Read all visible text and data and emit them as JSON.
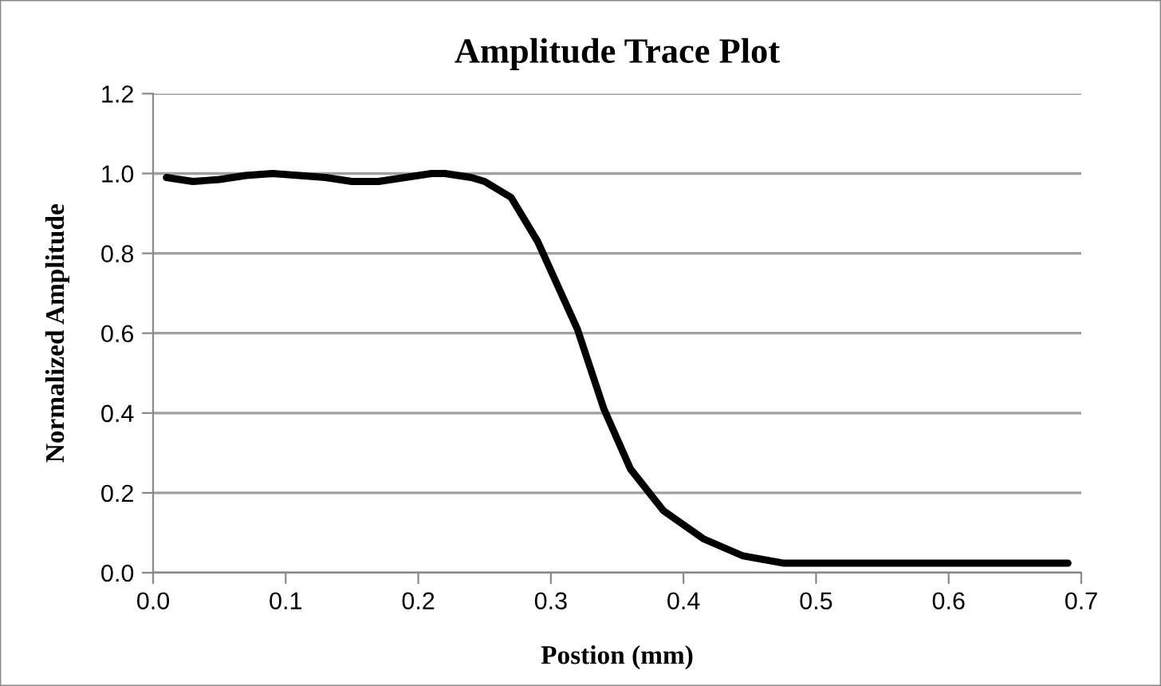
{
  "chart_data": {
    "type": "line",
    "title": "Amplitude Trace Plot",
    "xlabel": "Postion (mm)",
    "ylabel": "Normalized Amplitude",
    "series": [
      {
        "color": "#000000",
        "x": [
          0.01,
          0.03,
          0.05,
          0.07,
          0.09,
          0.11,
          0.13,
          0.15,
          0.17,
          0.19,
          0.21,
          0.22,
          0.24,
          0.25,
          0.27,
          0.29,
          0.32,
          0.34,
          0.36,
          0.385,
          0.415,
          0.445,
          0.475,
          0.5,
          0.6,
          0.69
        ],
        "values": [
          0.99,
          0.98,
          0.985,
          0.995,
          1.0,
          0.995,
          0.99,
          0.98,
          0.98,
          0.99,
          1.0,
          1.0,
          0.99,
          0.98,
          0.94,
          0.83,
          0.61,
          0.41,
          0.26,
          0.155,
          0.085,
          0.042,
          0.024,
          0.024,
          0.024,
          0.024
        ]
      }
    ],
    "xlim": [
      0,
      0.7
    ],
    "xticks": [
      {
        "value": 0,
        "label": "0.0"
      },
      0.1,
      0.2,
      0.3,
      0.4,
      0.5,
      0.6,
      0.7
    ],
    "ylim": [
      0,
      1.2
    ],
    "yticks": [
      {
        "value": 0,
        "label": "0.0"
      },
      0.2,
      0.4,
      0.6,
      0.8,
      {
        "value": 1.0,
        "label": "1.0"
      },
      1.2
    ],
    "grid": "y",
    "legend": false,
    "marker": "none",
    "line_style": "solid"
  }
}
